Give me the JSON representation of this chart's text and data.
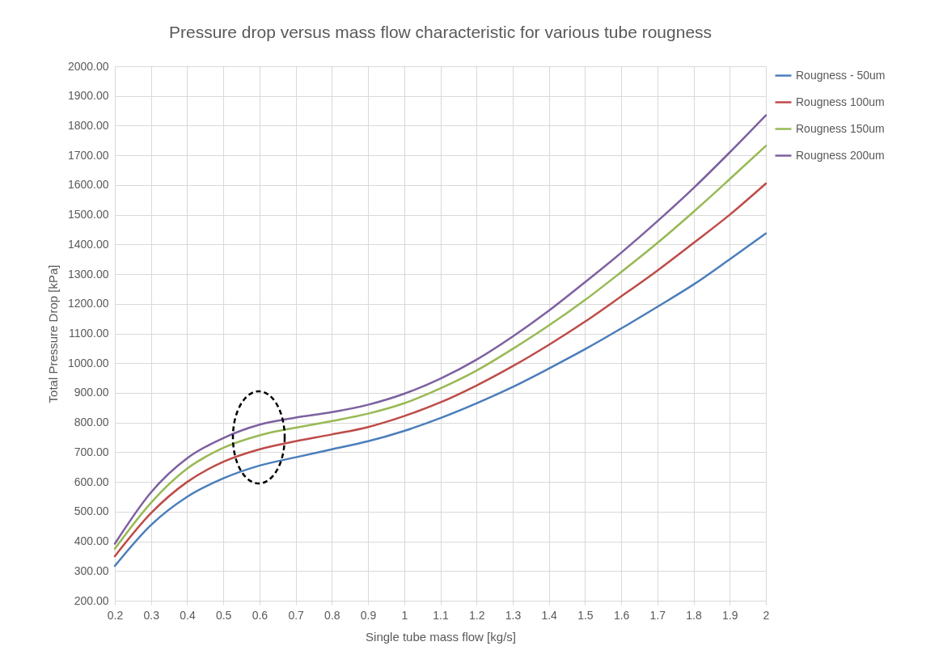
{
  "chart_data": {
    "type": "line",
    "title": "Pressure drop versus mass flow characteristic for various tube rougness",
    "xlabel": "Single tube mass flow [kg/s]",
    "ylabel": "Total Pressure Drop [kPa]",
    "x": [
      0.2,
      0.3,
      0.4,
      0.5,
      0.6,
      0.7,
      0.8,
      0.9,
      1.0,
      1.1,
      1.2,
      1.3,
      1.4,
      1.5,
      1.6,
      1.7,
      1.8,
      1.9,
      2.0
    ],
    "series": [
      {
        "name": "Rougness - 50um",
        "color": "#4a7ebb",
        "values": [
          317,
          455,
          550,
          612,
          655,
          683,
          710,
          737,
          772,
          815,
          865,
          920,
          982,
          1047,
          1117,
          1190,
          1265,
          1350,
          1437
        ]
      },
      {
        "name": "Rougness 100um",
        "color": "#be4b48",
        "values": [
          350,
          495,
          600,
          668,
          710,
          737,
          760,
          785,
          822,
          868,
          925,
          990,
          1062,
          1140,
          1225,
          1312,
          1405,
          1500,
          1605
        ]
      },
      {
        "name": "Rougness 150um",
        "color": "#98b954",
        "values": [
          375,
          530,
          645,
          715,
          757,
          783,
          805,
          830,
          865,
          915,
          975,
          1048,
          1127,
          1213,
          1307,
          1405,
          1510,
          1620,
          1732
        ]
      },
      {
        "name": "Rougness 200um",
        "color": "#7d60a0",
        "values": [
          392,
          565,
          680,
          748,
          793,
          817,
          835,
          860,
          897,
          948,
          1012,
          1090,
          1177,
          1273,
          1372,
          1478,
          1590,
          1710,
          1835
        ]
      }
    ],
    "xlim": [
      0.2,
      2
    ],
    "xticks": [
      0.2,
      0.3,
      0.4,
      0.5,
      0.6,
      0.7,
      0.8,
      0.9,
      1,
      1.1,
      1.2,
      1.3,
      1.4,
      1.5,
      1.6,
      1.7,
      1.8,
      1.9,
      2
    ],
    "ylim": [
      200,
      2000
    ],
    "yticks": [
      {
        "value": 200,
        "label": "200.00"
      },
      {
        "value": 300,
        "label": "300.00"
      },
      {
        "value": 400,
        "label": "400.00"
      },
      {
        "value": 500,
        "label": "500.00"
      },
      {
        "value": 600,
        "label": "600.00"
      },
      {
        "value": 700,
        "label": "700.00"
      },
      {
        "value": 800,
        "label": "800.00"
      },
      {
        "value": 900,
        "label": "900.00"
      },
      {
        "value": 1000,
        "label": "1000.00"
      },
      {
        "value": 1100,
        "label": "1100.00"
      },
      {
        "value": 1200,
        "label": "1200.00"
      },
      {
        "value": 1300,
        "label": "1300.00"
      },
      {
        "value": 1400,
        "label": "1400.00"
      },
      {
        "value": 1500,
        "label": "1500.00"
      },
      {
        "value": 1600,
        "label": "1600.00"
      },
      {
        "value": 1700,
        "label": "1700.00"
      },
      {
        "value": 1800,
        "label": "1800.00"
      },
      {
        "value": 1900,
        "label": "1900.00"
      },
      {
        "value": 2000,
        "label": "2000.00"
      }
    ],
    "grid": true,
    "legend": "right",
    "marker": "none",
    "line_style": "solid"
  }
}
